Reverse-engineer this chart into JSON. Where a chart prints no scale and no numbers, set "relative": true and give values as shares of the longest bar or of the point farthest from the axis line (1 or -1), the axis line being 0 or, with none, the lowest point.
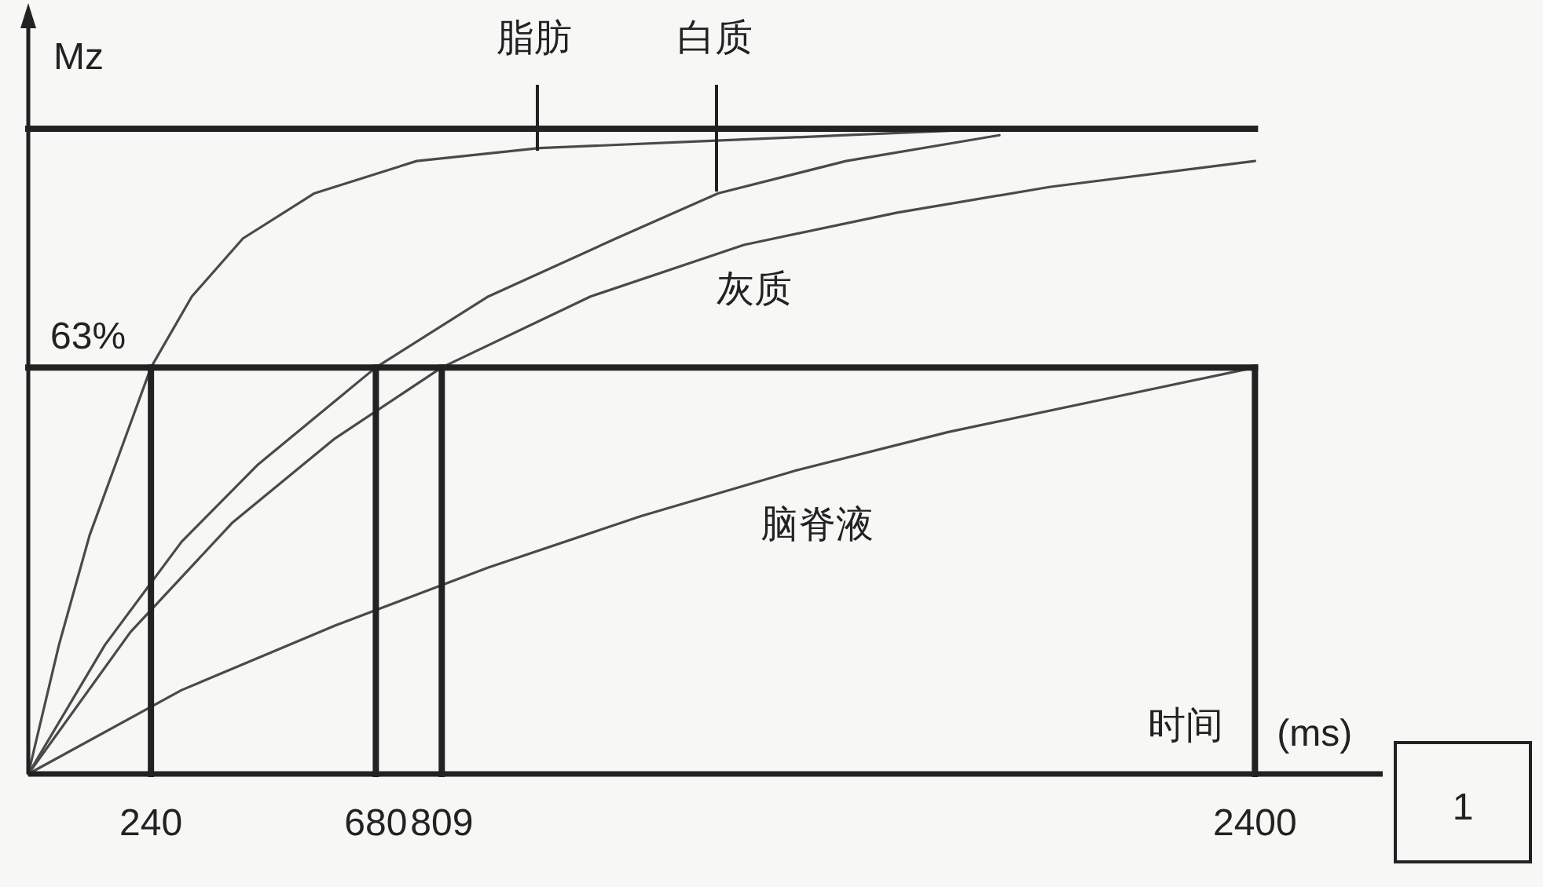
{
  "chart_data": {
    "type": "line",
    "relative": true,
    "ylabel": "Mz",
    "xlabel": "时间 (ms)",
    "xlim": [
      0,
      2650
    ],
    "xticks": [
      240,
      680,
      809,
      2400
    ],
    "series": [
      {
        "color": "#4a4a4a",
        "x": [
          0,
          60,
          120,
          180,
          240,
          320,
          420,
          560,
          760,
          1000,
          1300,
          1600,
          1900
        ],
        "values": [
          0,
          0.2,
          0.37,
          0.5,
          0.63,
          0.74,
          0.83,
          0.9,
          0.95,
          0.97,
          0.98,
          0.99,
          1.0
        ]
      },
      {
        "color": "#4a4a4a",
        "x": [
          0,
          150,
          300,
          450,
          680,
          900,
          1150,
          1350,
          1600,
          1900
        ],
        "values": [
          0,
          0.2,
          0.36,
          0.48,
          0.63,
          0.74,
          0.83,
          0.9,
          0.95,
          0.99
        ]
      },
      {
        "color": "#4a4a4a",
        "x": [
          0,
          200,
          400,
          600,
          809,
          1100,
          1400,
          1700,
          2000,
          2400
        ],
        "values": [
          0,
          0.22,
          0.39,
          0.52,
          0.63,
          0.74,
          0.82,
          0.87,
          0.91,
          0.95
        ]
      },
      {
        "color": "#4a4a4a",
        "x": [
          0,
          300,
          600,
          900,
          1200,
          1500,
          1800,
          2100,
          2400
        ],
        "values": [
          0,
          0.13,
          0.23,
          0.32,
          0.4,
          0.47,
          0.53,
          0.58,
          0.63
        ]
      },
      {
        "color": "#222222",
        "x": [
          0,
          2400
        ],
        "values": [
          1,
          1
        ]
      },
      {
        "color": "#222222",
        "x": [
          0,
          2400
        ],
        "values": [
          0.63,
          0.63
        ]
      },
      {
        "color": "#222222",
        "x": [
          240,
          240
        ],
        "values": [
          0,
          0.63
        ]
      },
      {
        "color": "#222222",
        "x": [
          680,
          680
        ],
        "values": [
          0,
          0.63
        ]
      },
      {
        "color": "#222222",
        "x": [
          809,
          809
        ],
        "values": [
          0,
          0.63
        ]
      },
      {
        "color": "#222222",
        "x": [
          2400,
          2400
        ],
        "values": [
          0,
          0.63
        ]
      }
    ],
    "annotations": [
      {
        "text": "63%",
        "x": 0,
        "y": 0.63
      },
      "脂肪",
      "白质",
      "灰质",
      "脑脊液",
      "1"
    ]
  }
}
